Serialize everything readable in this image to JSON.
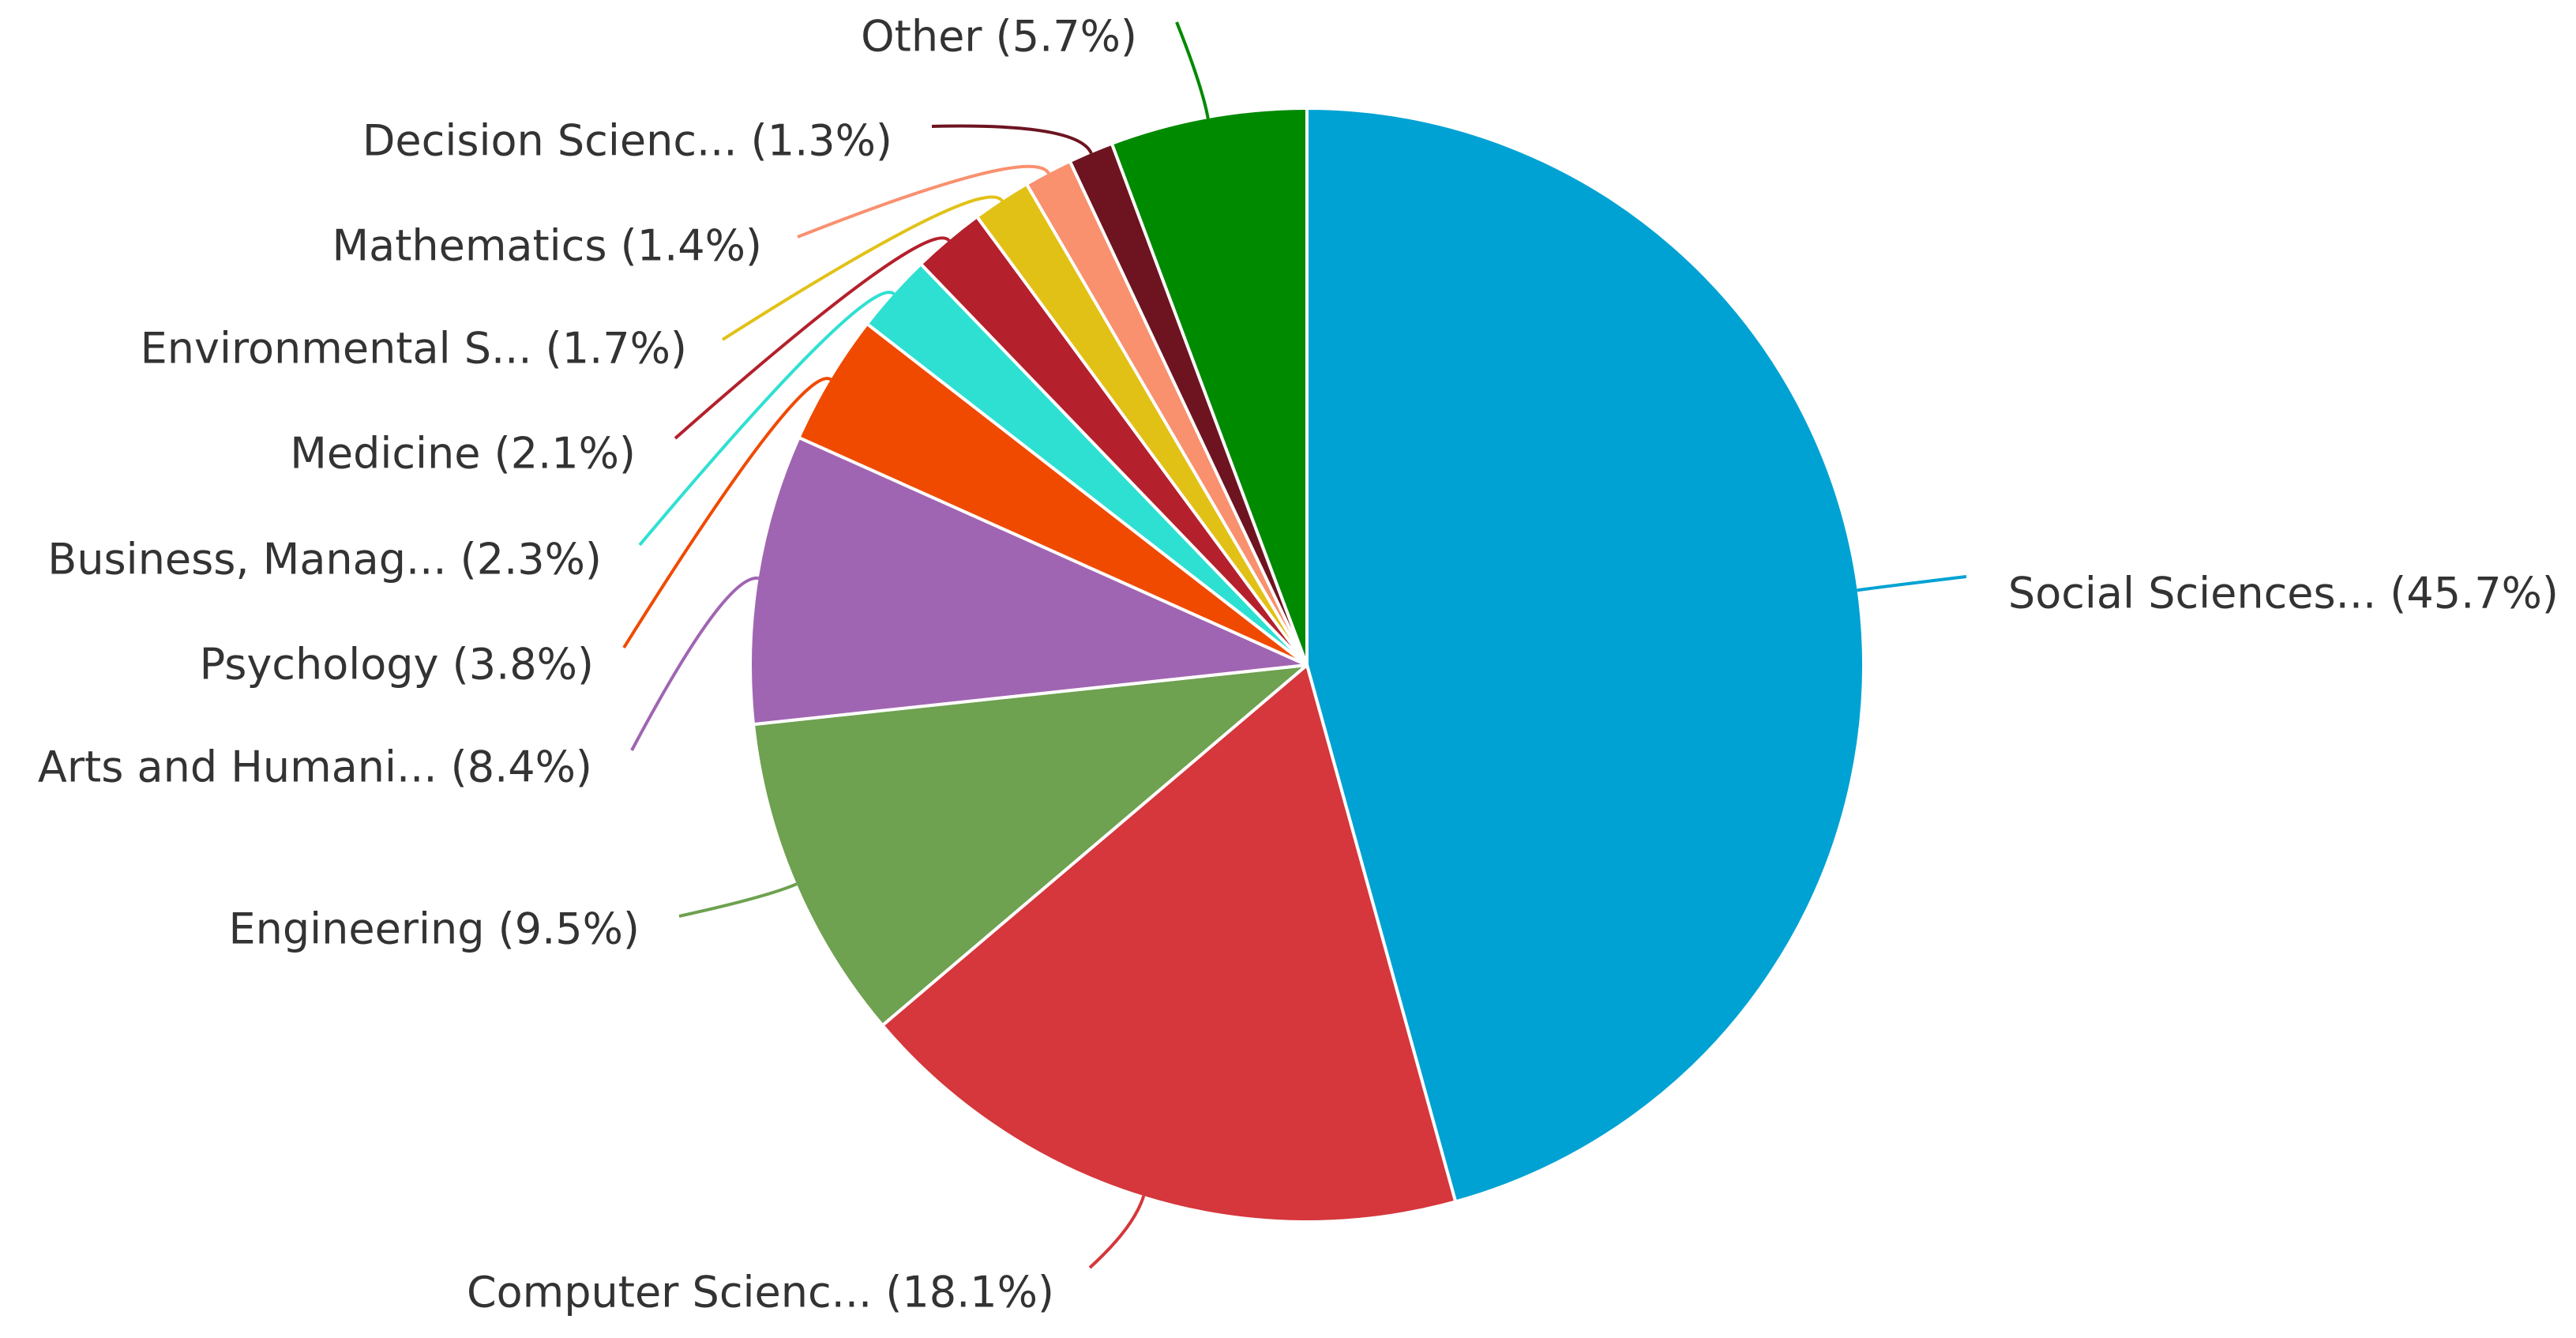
{
  "chart_data": {
    "type": "pie",
    "title": "",
    "unit": "%",
    "slices": [
      {
        "label": "Social Sciences...",
        "value": 45.7,
        "color": "#00a2d3"
      },
      {
        "label": "Computer Scienc...",
        "value": 18.1,
        "color": "#d5373c"
      },
      {
        "label": "Engineering",
        "value": 9.5,
        "color": "#6ea150"
      },
      {
        "label": "Arts and Humani...",
        "value": 8.4,
        "color": "#a065b2"
      },
      {
        "label": "Psychology",
        "value": 3.8,
        "color": "#f04a00"
      },
      {
        "label": "Business, Manag...",
        "value": 2.3,
        "color": "#2ee0d2"
      },
      {
        "label": "Medicine",
        "value": 2.1,
        "color": "#b4202c"
      },
      {
        "label": "Environmental S...",
        "value": 1.7,
        "color": "#e2c117"
      },
      {
        "label": "Mathematics",
        "value": 1.4,
        "color": "#f9906e"
      },
      {
        "label": "Decision Scienc...",
        "value": 1.3,
        "color": "#6d1420"
      },
      {
        "label": "Other",
        "value": 5.7,
        "color": "#008a00"
      }
    ],
    "start_angle_deg": 0,
    "direction": "clockwise",
    "legend": "none"
  }
}
